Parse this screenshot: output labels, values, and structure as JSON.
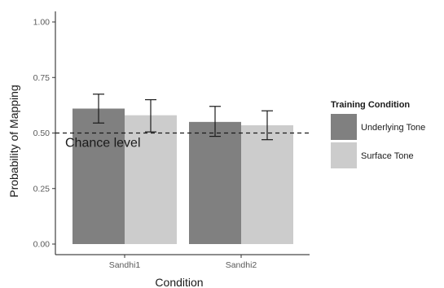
{
  "chart_data": {
    "type": "bar",
    "xlabel": "Condition",
    "ylabel": "Probability of Mapping",
    "ylim": [
      0,
      1.05
    ],
    "yticks": [
      "0.00",
      "0.25",
      "0.50",
      "0.75",
      "1.00"
    ],
    "ytick_values": [
      0,
      0.25,
      0.5,
      0.75,
      1.0
    ],
    "categories": [
      "Sandhi1",
      "Sandhi2"
    ],
    "series": [
      {
        "name": "Underlying Tone",
        "color": "#808080",
        "values": [
          0.61,
          0.55
        ],
        "error_low": [
          0.545,
          0.485
        ],
        "error_high": [
          0.675,
          0.62
        ]
      },
      {
        "name": "Surface Tone",
        "color": "#cccccc",
        "values": [
          0.58,
          0.535
        ],
        "error_low": [
          0.505,
          0.47
        ],
        "error_high": [
          0.65,
          0.6
        ]
      }
    ],
    "reference_line": {
      "value": 0.5,
      "style": "dashed"
    },
    "annotation": {
      "text": "Chance level",
      "value": 0.5
    },
    "legend": {
      "title": "Training Condition",
      "placement": "right"
    },
    "grid": false
  }
}
